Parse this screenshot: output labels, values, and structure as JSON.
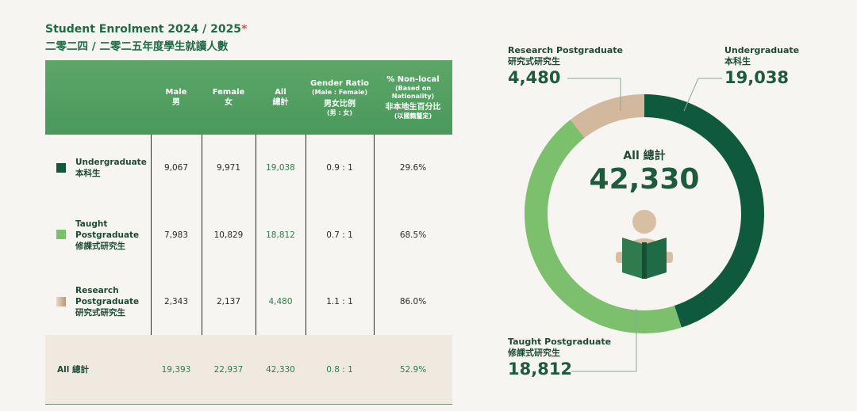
{
  "header": {
    "title": "Student Enrolment 2024 / 2025",
    "asterisk": "*",
    "subtitle": "二零二四 / 二零二五年度學生就讀人數"
  },
  "table": {
    "columns": [
      {
        "en": "Male",
        "zh": "男"
      },
      {
        "en": "Female",
        "zh": "女"
      },
      {
        "en": "All",
        "zh": "總計"
      },
      {
        "en": "Gender Ratio",
        "sub": "(Male : Female)",
        "zh": "男女比例",
        "zh_sub": "(男 : 女)"
      },
      {
        "en": "% Non-local",
        "sub": "(Based on Nationality)",
        "zh": "非本地生百分比",
        "zh_sub": "(以國籍釐定)"
      }
    ],
    "rows": [
      {
        "label_en": "Undergraduate",
        "label_en2": "",
        "label_zh": "本科生",
        "color": "#0f5a3e",
        "male": "9,067",
        "female": "9,971",
        "all": "19,038",
        "ratio": "0.9 : 1",
        "nonlocal": "29.6%"
      },
      {
        "label_en": "Taught",
        "label_en2": "Postgraduate",
        "label_zh": "修課式研究生",
        "color": "#7cbf6c",
        "male": "7,983",
        "female": "10,829",
        "all": "18,812",
        "ratio": "0.7 : 1",
        "nonlocal": "68.5%"
      },
      {
        "label_en": "Research",
        "label_en2": "Postgraduate",
        "label_zh": "研究式研究生",
        "color": "#c9ae92",
        "male": "2,343",
        "female": "2,137",
        "all": "4,480",
        "ratio": "1.1 : 1",
        "nonlocal": "86.0%"
      }
    ],
    "total": {
      "label": "All 總計",
      "male": "19,393",
      "female": "22,937",
      "all": "42,330",
      "ratio": "0.8 : 1",
      "nonlocal": "52.9%"
    }
  },
  "chart_data": {
    "type": "pie",
    "title": "All 總計",
    "total_label": "42,330",
    "categories": [
      "Undergraduate 本科生",
      "Taught Postgraduate 修課式研究生",
      "Research Postgraduate 研究式研究生"
    ],
    "values": [
      19038,
      18812,
      4480
    ],
    "colors": [
      "#0f5a3e",
      "#7cbf6c",
      "#d2b89c"
    ],
    "labels": [
      {
        "en": "Undergraduate",
        "zh": "本科生",
        "value": "19,038"
      },
      {
        "en": "Taught Postgraduate",
        "zh": "修課式研究生",
        "value": "18,812"
      },
      {
        "en": "Research Postgraduate",
        "zh": "研究式研究生",
        "value": "4,480"
      }
    ]
  }
}
